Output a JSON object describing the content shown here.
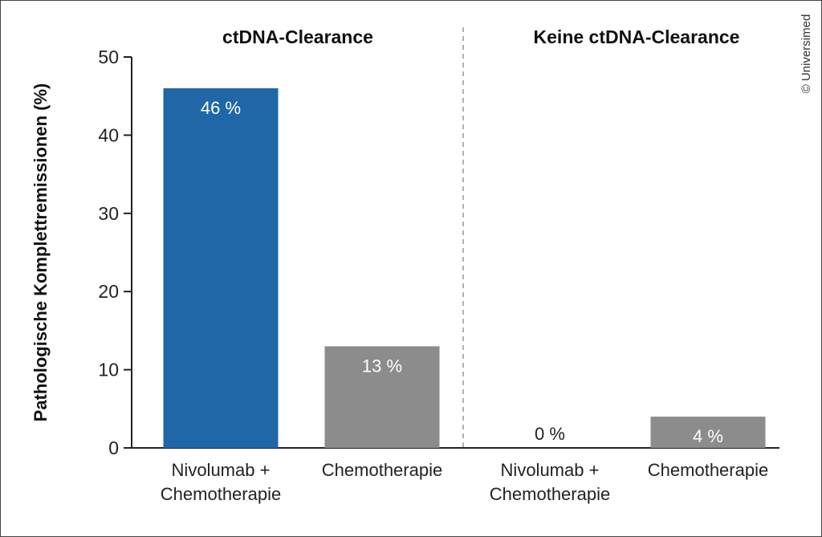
{
  "chart_data": {
    "type": "bar",
    "ylabel": "Pathologische Komplettremissionen (%)",
    "ylim": [
      0,
      50
    ],
    "yticks": [
      0,
      10,
      20,
      30,
      40,
      50
    ],
    "grid": false,
    "credit": "© Universimed",
    "groups": [
      {
        "title": "ctDNA-Clearance",
        "bars": [
          {
            "category": [
              "Nivolumab +",
              "Chemotherapie"
            ],
            "value": 46,
            "label": "46 %",
            "color": "#1f67a6",
            "label_color": "#ffffff"
          },
          {
            "category": [
              "Chemotherapie"
            ],
            "value": 13,
            "label": "13 %",
            "color": "#8c8c8c",
            "label_color": "#ffffff"
          }
        ]
      },
      {
        "title": "Keine ctDNA-Clearance",
        "bars": [
          {
            "category": [
              "Nivolumab +",
              "Chemotherapie"
            ],
            "value": 0,
            "label": "0 %",
            "color": "#1f67a6",
            "label_color": "#222222"
          },
          {
            "category": [
              "Chemotherapie"
            ],
            "value": 4,
            "label": "4 %",
            "color": "#8c8c8c",
            "label_color": "#ffffff"
          }
        ]
      }
    ]
  }
}
